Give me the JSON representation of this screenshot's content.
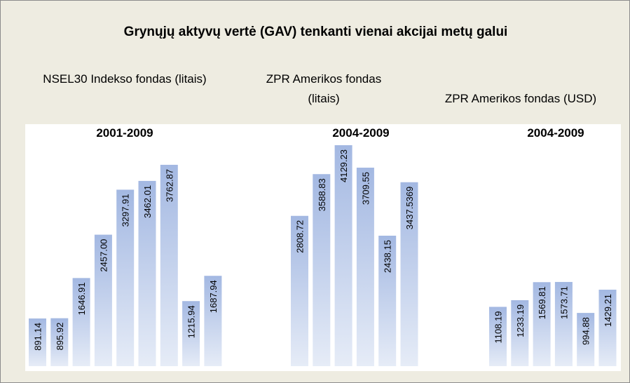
{
  "title": "Grynųjų aktyvų vertė (GAV) tenkanti vienai akcijai metų galui",
  "chart_data": [
    {
      "type": "bar",
      "subtitle": "NSEL30 Indekso fondas (litais)",
      "title": "2001-2009",
      "values": [
        891.14,
        895.92,
        1646.91,
        2457,
        3297.91,
        3462.01,
        3762.87,
        1215.94,
        1687.94
      ],
      "value_labels": [
        "891.14",
        "895.92",
        "1646.91",
        "2457.00",
        "3297.91",
        "3462.01",
        "3762.87",
        "1215.94",
        "1687.94"
      ]
    },
    {
      "type": "bar",
      "subtitle": "ZPR Amerikos fondas (litais)",
      "title": "2004-2009",
      "values": [
        2808.72,
        3588.83,
        4129.23,
        3709.55,
        2438.15,
        3437.5369
      ],
      "value_labels": [
        "2808.72",
        "3588.83",
        "4129.23",
        "3709.55",
        "2438.15",
        "3437.5369"
      ]
    },
    {
      "type": "bar",
      "subtitle": "ZPR Amerikos fondas (USD)",
      "title": "2004-2009",
      "values": [
        1108.19,
        1233.19,
        1569.81,
        1573.71,
        994.88,
        1429.21
      ],
      "value_labels": [
        "1108.19",
        "1233.19",
        "1569.81",
        "1573.71",
        "994.88",
        "1429.21"
      ]
    }
  ]
}
